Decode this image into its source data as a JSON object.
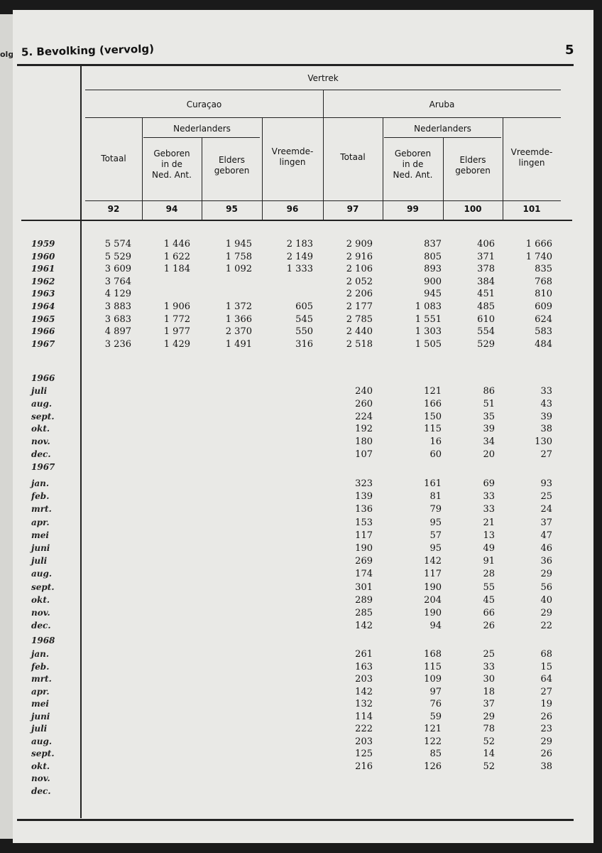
{
  "header": {
    "title": "Bevolking (vervolg)",
    "section_mark": "5.",
    "page_number": "5"
  },
  "left_page_fragment": "olg)",
  "table": {
    "super_header": "Vertrek",
    "groups": [
      "Curaçao",
      "Aruba"
    ],
    "subgroup": "Nederlanders",
    "columns": [
      "Totaal",
      "Geboren in de Ned. Ant.",
      "Elders geboren",
      "Vreemdelingen",
      "Totaal",
      "Geboren in de Ned. Ant.",
      "Elders geboren",
      "Vreemdelingen"
    ],
    "column_labels": {
      "totaal": "Totaal",
      "geboren": [
        "Geboren",
        "in de",
        "Ned. Ant."
      ],
      "elders": [
        "Elders",
        "geboren"
      ],
      "vreemd": [
        "Vreemde-",
        "lingen"
      ]
    },
    "column_numbers": [
      "92",
      "94",
      "95",
      "96",
      "97",
      "99",
      "100",
      "101"
    ],
    "yearly": [
      {
        "label": "1959",
        "values": [
          "5 574",
          "1 446",
          "1 945",
          "2 183",
          "2 909",
          "837",
          "406",
          "1 666"
        ]
      },
      {
        "label": "1960",
        "values": [
          "5 529",
          "1 622",
          "1 758",
          "2 149",
          "2 916",
          "805",
          "371",
          "1 740"
        ]
      },
      {
        "label": "1961",
        "values": [
          "3 609",
          "1 184",
          "1 092",
          "1 333",
          "2 106",
          "893",
          "378",
          "835"
        ]
      },
      {
        "label": "1962",
        "values": [
          "3 764",
          "",
          "",
          "",
          "2 052",
          "900",
          "384",
          "768"
        ]
      },
      {
        "label": "1963",
        "values": [
          "4 129",
          "",
          "",
          "",
          "2 206",
          "945",
          "451",
          "810"
        ]
      },
      {
        "label": "1964",
        "values": [
          "3 883",
          "1 906",
          "1 372",
          "605",
          "2 177",
          "1 083",
          "485",
          "609"
        ]
      },
      {
        "label": "1965",
        "values": [
          "3 683",
          "1 772",
          "1 366",
          "545",
          "2 785",
          "1 551",
          "610",
          "624"
        ]
      },
      {
        "label": "1966",
        "values": [
          "4 897",
          "1 977",
          "2 370",
          "550",
          "2 440",
          "1 303",
          "554",
          "583"
        ]
      },
      {
        "label": "1967",
        "values": [
          "3 236",
          "1 429",
          "1 491",
          "316",
          "2 518",
          "1 505",
          "529",
          "484"
        ]
      }
    ],
    "monthly": [
      {
        "year": "1966",
        "months": [
          {
            "label": "juli",
            "values": [
              "240",
              "121",
              "86",
              "33"
            ]
          },
          {
            "label": "aug.",
            "values": [
              "260",
              "166",
              "51",
              "43"
            ]
          },
          {
            "label": "sept.",
            "values": [
              "224",
              "150",
              "35",
              "39"
            ]
          },
          {
            "label": "okt.",
            "values": [
              "192",
              "115",
              "39",
              "38"
            ]
          },
          {
            "label": "nov.",
            "values": [
              "180",
              "16",
              "34",
              "130"
            ]
          },
          {
            "label": "dec.",
            "values": [
              "107",
              "60",
              "20",
              "27"
            ]
          }
        ]
      },
      {
        "year": "1967",
        "months": [
          {
            "label": "jan.",
            "values": [
              "323",
              "161",
              "69",
              "93"
            ]
          },
          {
            "label": "feb.",
            "values": [
              "139",
              "81",
              "33",
              "25"
            ]
          },
          {
            "label": "mrt.",
            "values": [
              "136",
              "79",
              "33",
              "24"
            ]
          },
          {
            "label": "apr.",
            "values": [
              "153",
              "95",
              "21",
              "37"
            ]
          },
          {
            "label": "mei",
            "values": [
              "117",
              "57",
              "13",
              "47"
            ]
          },
          {
            "label": "juni",
            "values": [
              "190",
              "95",
              "49",
              "46"
            ]
          },
          {
            "label": "juli",
            "values": [
              "269",
              "142",
              "91",
              "36"
            ]
          },
          {
            "label": "aug.",
            "values": [
              "174",
              "117",
              "28",
              "29"
            ]
          },
          {
            "label": "sept.",
            "values": [
              "301",
              "190",
              "55",
              "56"
            ]
          },
          {
            "label": "okt.",
            "values": [
              "289",
              "204",
              "45",
              "40"
            ]
          },
          {
            "label": "nov.",
            "values": [
              "285",
              "190",
              "66",
              "29"
            ]
          },
          {
            "label": "dec.",
            "values": [
              "142",
              "94",
              "26",
              "22"
            ]
          }
        ]
      },
      {
        "year": "1968",
        "months": [
          {
            "label": "jan.",
            "values": [
              "261",
              "168",
              "25",
              "68"
            ]
          },
          {
            "label": "feb.",
            "values": [
              "163",
              "115",
              "33",
              "15"
            ]
          },
          {
            "label": "mrt.",
            "values": [
              "203",
              "109",
              "30",
              "64"
            ]
          },
          {
            "label": "apr.",
            "values": [
              "142",
              "97",
              "18",
              "27"
            ]
          },
          {
            "label": "mei",
            "values": [
              "132",
              "76",
              "37",
              "19"
            ]
          },
          {
            "label": "juni",
            "values": [
              "114",
              "59",
              "29",
              "26"
            ]
          },
          {
            "label": "juli",
            "values": [
              "222",
              "121",
              "78",
              "23"
            ]
          },
          {
            "label": "aug.",
            "values": [
              "203",
              "122",
              "52",
              "29"
            ]
          },
          {
            "label": "sept.",
            "values": [
              "125",
              "85",
              "14",
              "26"
            ]
          },
          {
            "label": "okt.",
            "values": [
              "216",
              "126",
              "52",
              "38"
            ]
          },
          {
            "label": "nov.",
            "values": [
              "",
              "",
              "",
              ""
            ]
          },
          {
            "label": "dec.",
            "values": [
              "",
              "",
              "",
              ""
            ]
          }
        ]
      }
    ]
  }
}
